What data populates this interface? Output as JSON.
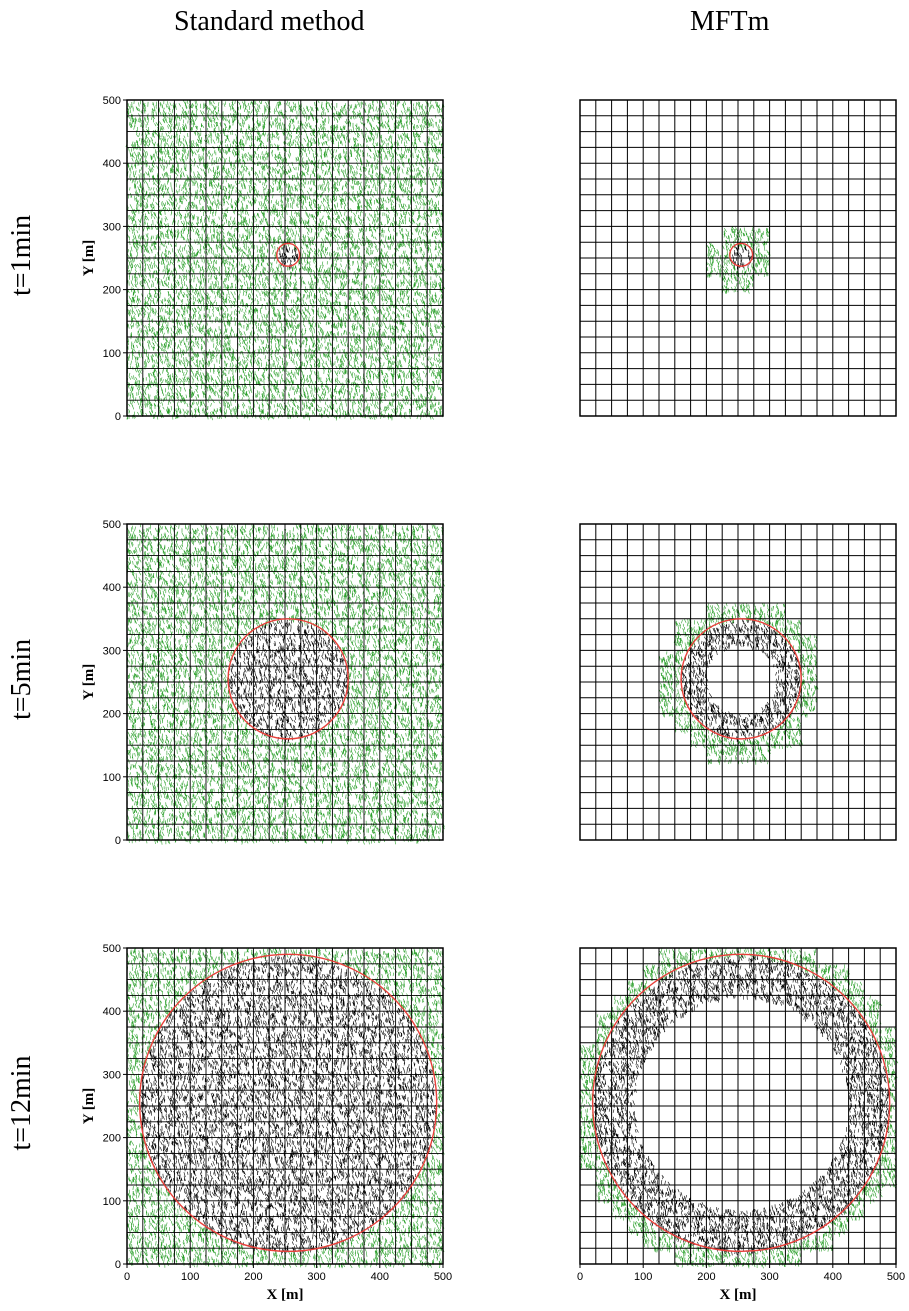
{
  "column_titles": [
    "Standard method",
    "MFTm"
  ],
  "row_titles": [
    "t=1min",
    "t=5min",
    "t=12min"
  ],
  "axis_labels": {
    "x": "X [m]",
    "y": "Y [m]"
  },
  "tick_labels": [
    "0",
    "100",
    "200",
    "300",
    "400",
    "500"
  ],
  "colors": {
    "unburnt": "#2ca02c",
    "burnt": "#000000",
    "fire_front": "#e8403a",
    "grid": "#000000"
  },
  "chart_data": [
    {
      "type": "map",
      "method": "Standard method",
      "time": "t=1min",
      "xlim": [
        0,
        500
      ],
      "ylim": [
        0,
        500
      ],
      "grid_cells": 20,
      "front_center": [
        255,
        255
      ],
      "front_radius": 18,
      "computed_region": "entire domain"
    },
    {
      "type": "map",
      "method": "MFTm",
      "time": "t=1min",
      "xlim": [
        0,
        500
      ],
      "ylim": [
        0,
        500
      ],
      "grid_cells": 20,
      "front_center": [
        255,
        255
      ],
      "front_radius": 18,
      "computed_region": "cells within band around front"
    },
    {
      "type": "map",
      "method": "Standard method",
      "time": "t=5min",
      "xlim": [
        0,
        500
      ],
      "ylim": [
        0,
        500
      ],
      "grid_cells": 20,
      "front_center": [
        255,
        255
      ],
      "front_radius": 95,
      "computed_region": "entire domain"
    },
    {
      "type": "map",
      "method": "MFTm",
      "time": "t=5min",
      "xlim": [
        0,
        500
      ],
      "ylim": [
        0,
        500
      ],
      "grid_cells": 20,
      "front_center": [
        255,
        255
      ],
      "front_radius": 95,
      "computed_region": "cells within band around front"
    },
    {
      "type": "map",
      "method": "Standard method",
      "time": "t=12min",
      "xlim": [
        0,
        500
      ],
      "ylim": [
        0,
        500
      ],
      "grid_cells": 20,
      "front_center": [
        255,
        255
      ],
      "front_radius": 235,
      "computed_region": "entire domain"
    },
    {
      "type": "map",
      "method": "MFTm",
      "time": "t=12min",
      "xlim": [
        0,
        500
      ],
      "ylim": [
        0,
        500
      ],
      "grid_cells": 20,
      "front_center": [
        255,
        255
      ],
      "front_radius": 235,
      "computed_region": "cells within band around front"
    }
  ]
}
